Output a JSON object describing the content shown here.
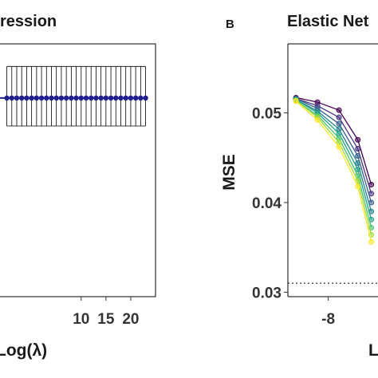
{
  "panels": {
    "left": {
      "title": "ression",
      "xlabel": "Log(λ)"
    },
    "right": {
      "letter": "B",
      "title": "Elastic Net",
      "ylabel": "MSE",
      "xlabel": "L"
    }
  },
  "colors": {
    "mean_line": "#1f1f8f",
    "error_bars": "#000000",
    "ref_line": "#000000",
    "series": [
      "#440154",
      "#46337e",
      "#365c8d",
      "#277f8e",
      "#1fa187",
      "#4ac16d",
      "#9fda3a",
      "#fde725"
    ]
  },
  "chart_data": [
    {
      "type": "line",
      "panel": "left",
      "title": "ression",
      "xlabel": "Log(λ)",
      "ylabel": "",
      "x_ticks": [
        10,
        15,
        20
      ],
      "x": [
        -5,
        -4,
        -3,
        -2,
        -1,
        0,
        1,
        2,
        3,
        4,
        5,
        6,
        7,
        8,
        9,
        10,
        11,
        12,
        13,
        14,
        15,
        16,
        17,
        18,
        19,
        20,
        21,
        22,
        23
      ],
      "mean": 0.052,
      "error_low": 0.0489,
      "error_high": 0.0555,
      "xlim": [
        -6.7,
        25
      ],
      "ylim": [
        0.03,
        0.058
      ],
      "grid": false
    },
    {
      "type": "line",
      "panel": "right",
      "title": "Elastic Net",
      "xlabel": "L",
      "ylabel": "MSE",
      "y_ticks": [
        0.03,
        0.04,
        0.05
      ],
      "y_tick_labels": [
        "0.03",
        "0.04",
        "0.05"
      ],
      "x_ticks": [
        -8
      ],
      "xlim": [
        -9.5,
        -6.15
      ],
      "ylim": [
        0.0295,
        0.0577
      ],
      "reference_line": 0.031,
      "x": [
        -9.2,
        -8.4,
        -7.6,
        -6.9,
        -6.4
      ],
      "series": [
        {
          "values": [
            0.0517,
            0.0512,
            0.0503,
            0.047,
            0.042
          ]
        },
        {
          "values": [
            0.0516,
            0.0508,
            0.0495,
            0.046,
            0.041
          ]
        },
        {
          "values": [
            0.0516,
            0.0505,
            0.0488,
            0.0452,
            0.04
          ]
        },
        {
          "values": [
            0.0515,
            0.0502,
            0.0482,
            0.0444,
            0.039
          ]
        },
        {
          "values": [
            0.0515,
            0.05,
            0.0477,
            0.0437,
            0.0381
          ]
        },
        {
          "values": [
            0.0514,
            0.0497,
            0.0472,
            0.043,
            0.0372
          ]
        },
        {
          "values": [
            0.0514,
            0.0495,
            0.0467,
            0.0424,
            0.0364
          ]
        },
        {
          "values": [
            0.0513,
            0.0492,
            0.0462,
            0.0418,
            0.0356
          ]
        }
      ],
      "grid": false
    }
  ]
}
